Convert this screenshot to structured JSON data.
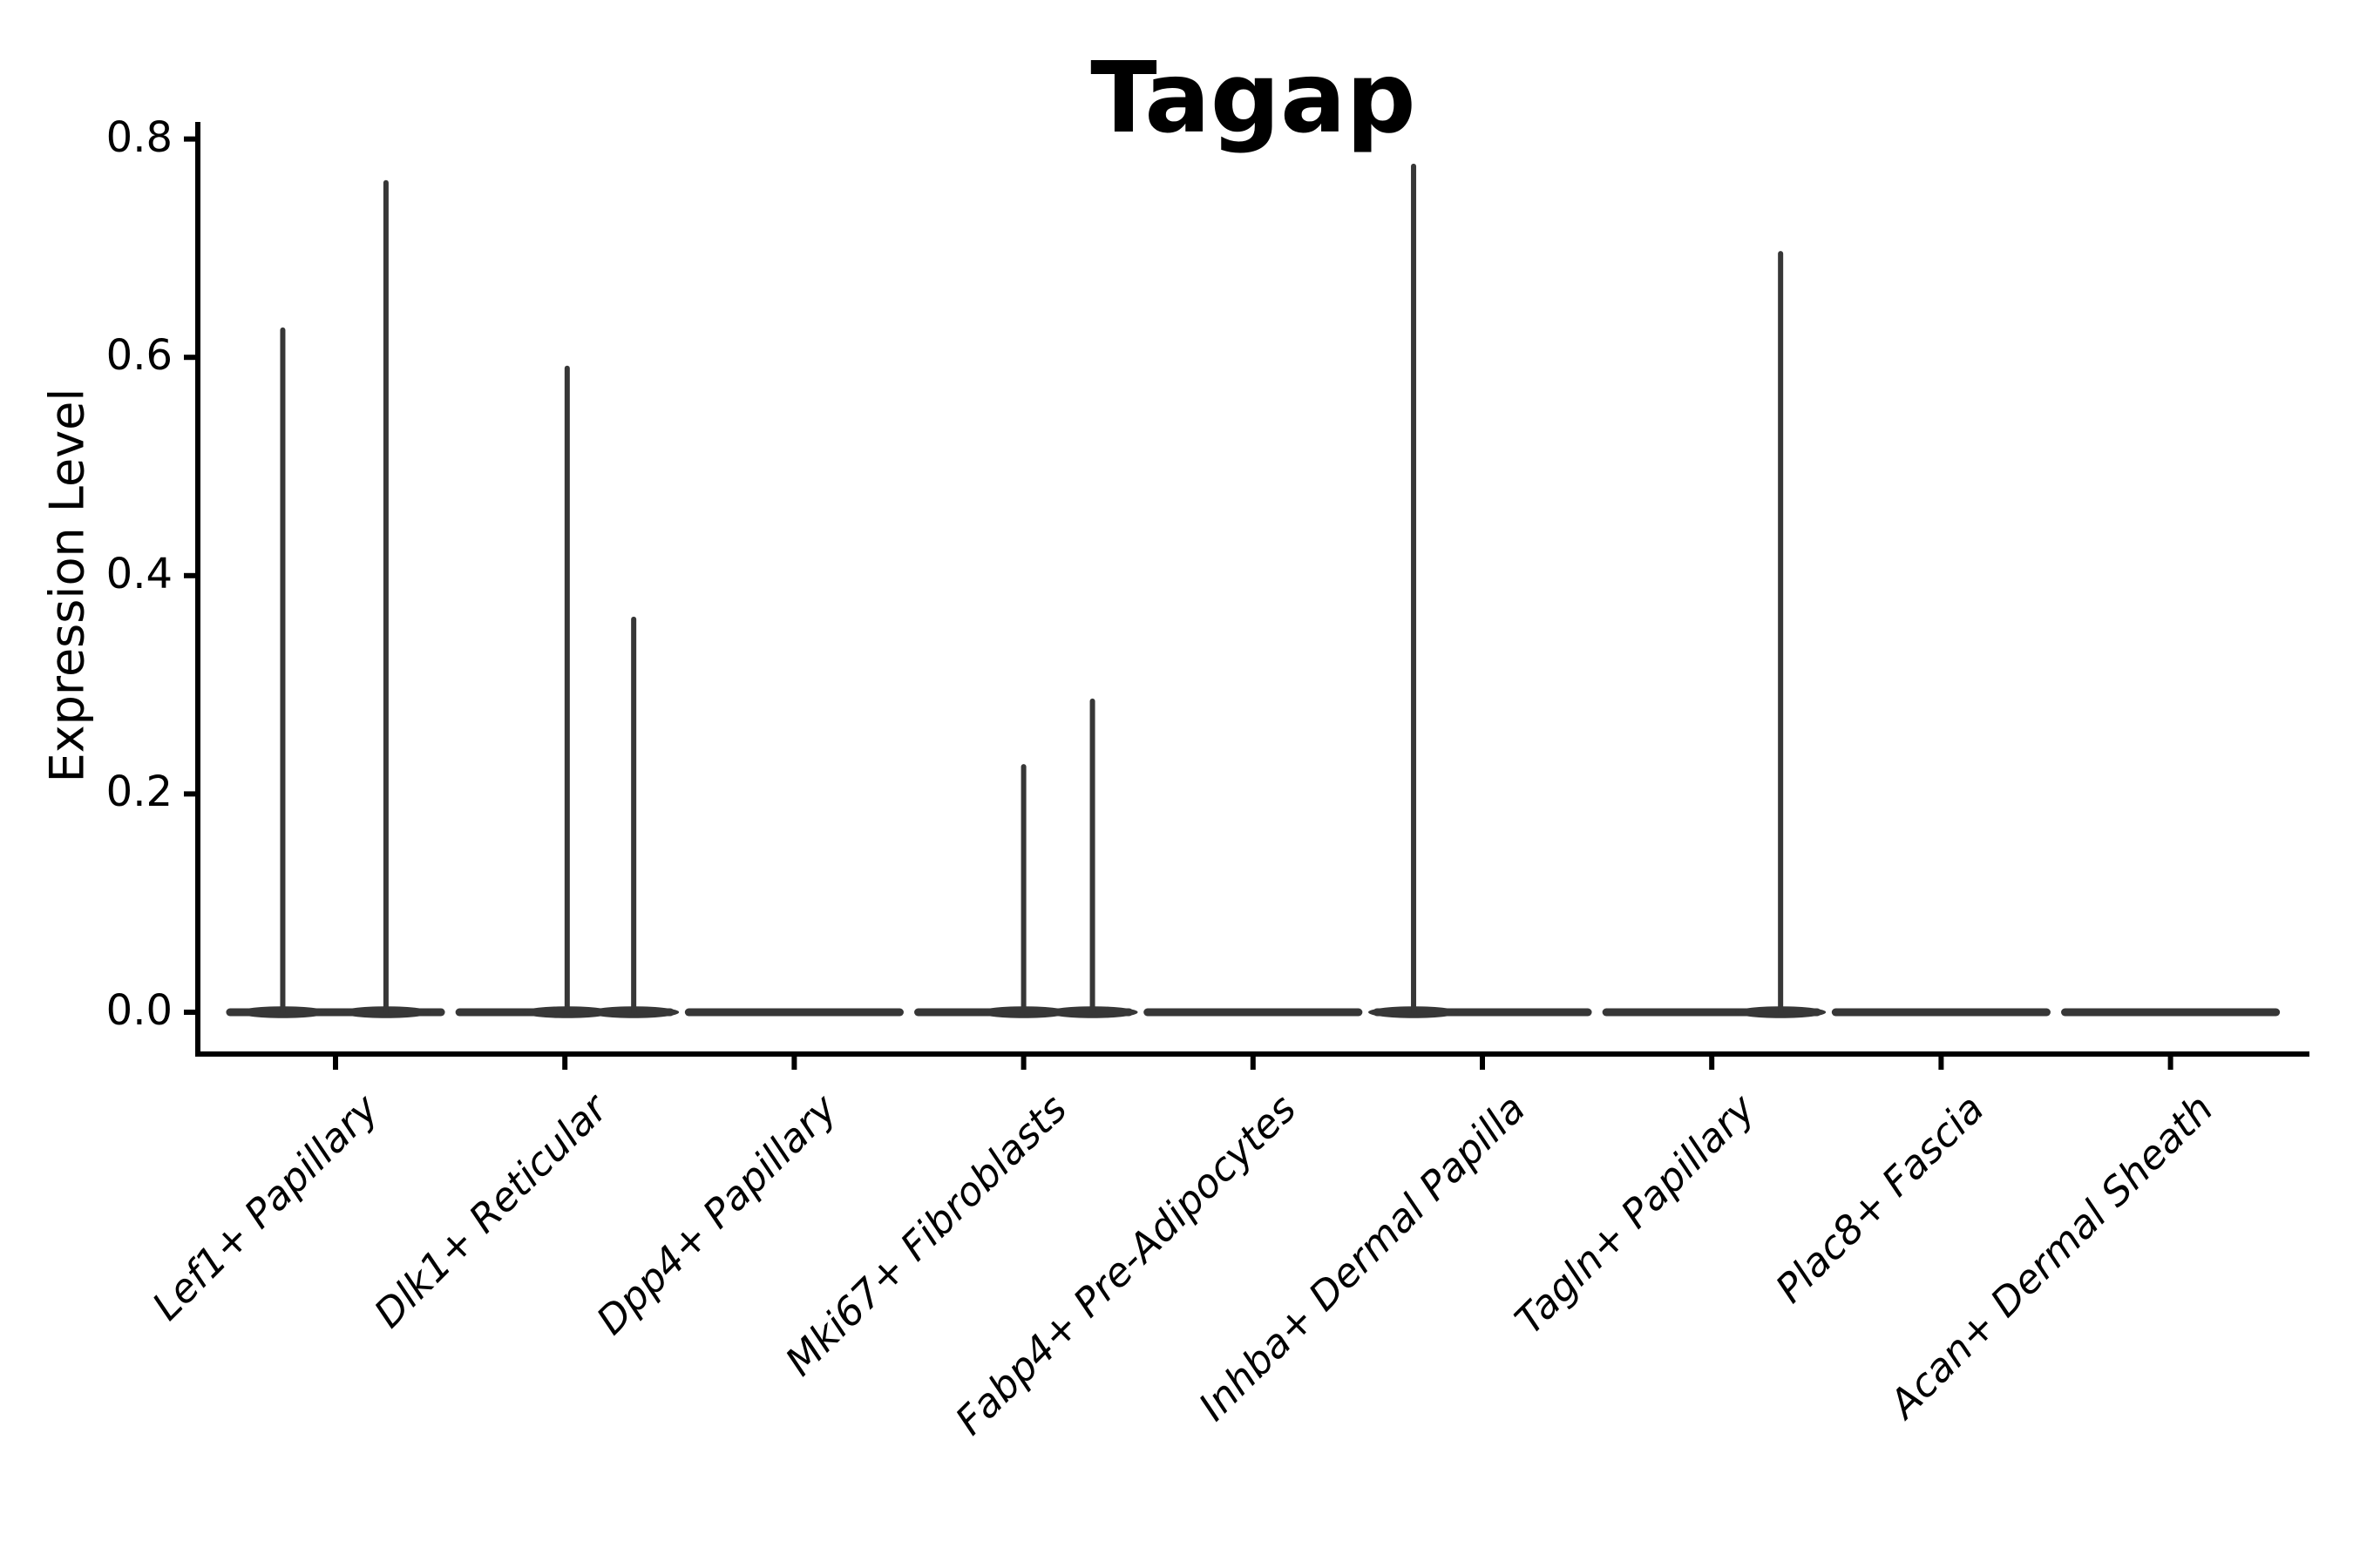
{
  "title": "Tagap",
  "y_axis": {
    "label": "Expression Level",
    "tick_labels": [
      "0.0",
      "0.2",
      "0.4",
      "0.6",
      "0.8"
    ],
    "tick_values": [
      0.0,
      0.2,
      0.4,
      0.6,
      0.8
    ],
    "limits": [
      0.0,
      0.8
    ]
  },
  "chart_data": {
    "type": "violin",
    "title": "Tagap",
    "xlabel": "",
    "ylabel": "Expression Level",
    "ylim": [
      0.0,
      0.8
    ],
    "y_ticks": [
      0.0,
      0.2,
      0.4,
      0.6,
      0.8
    ],
    "grid": false,
    "legend": null,
    "categories": [
      "Lef1+ Papillary",
      "Dlk1+ Reticular",
      "Dpp4+ Papillary",
      "Mki67+ Fibroblasts",
      "Fabp4+ Pre-Adipocytes",
      "Inhba+ Dermal Papilla",
      "Tagln+ Papillary",
      "Plac8+ Fascia",
      "Acan+ Dermal Sheath"
    ],
    "violin_base_halfwidth": 0.46,
    "violins": [
      {
        "category": "Lef1+ Papillary",
        "base_value": 0.0,
        "spikes": [
          {
            "offset": -0.23,
            "peak": 0.625
          },
          {
            "offset": 0.22,
            "peak": 0.76
          }
        ]
      },
      {
        "category": "Dlk1+ Reticular",
        "base_value": 0.0,
        "spikes": [
          {
            "offset": 0.01,
            "peak": 0.59
          },
          {
            "offset": 0.3,
            "peak": 0.36
          }
        ]
      },
      {
        "category": "Dpp4+ Papillary",
        "base_value": 0.0,
        "spikes": []
      },
      {
        "category": "Mki67+ Fibroblasts",
        "base_value": 0.0,
        "spikes": [
          {
            "offset": 0.0,
            "peak": 0.225
          },
          {
            "offset": 0.3,
            "peak": 0.285
          }
        ]
      },
      {
        "category": "Fabp4+ Pre-Adipocytes",
        "base_value": 0.0,
        "spikes": []
      },
      {
        "category": "Inhba+ Dermal Papilla",
        "base_value": 0.0,
        "spikes": [
          {
            "offset": -0.3,
            "peak": 0.775
          }
        ]
      },
      {
        "category": "Tagln+ Papillary",
        "base_value": 0.0,
        "spikes": [
          {
            "offset": 0.3,
            "peak": 0.695
          }
        ]
      },
      {
        "category": "Plac8+ Fascia",
        "base_value": 0.0,
        "spikes": []
      },
      {
        "category": "Acan+ Dermal Sheath",
        "base_value": 0.0,
        "spikes": []
      }
    ],
    "colors": {
      "violin": "#373737",
      "axis": "#000000",
      "text": "#000000",
      "background": "#ffffff"
    }
  }
}
